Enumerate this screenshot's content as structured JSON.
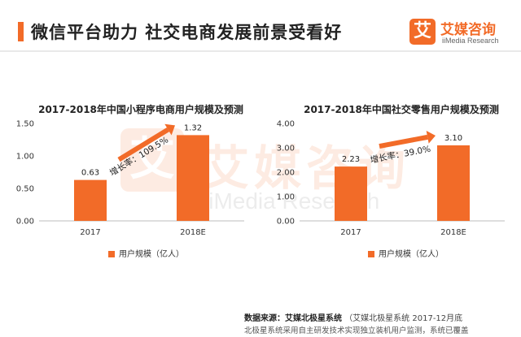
{
  "page": {
    "title": "微信平台助力 社交电商发展前景受看好",
    "accent_color": "#f26b28"
  },
  "brand": {
    "name": "艾媒咨询",
    "sub": "iiMedia Research",
    "mark": "艾"
  },
  "watermark": {
    "name": "艾媒咨询",
    "sub": "iiMedia Research",
    "mark": "艾"
  },
  "chart_data": [
    {
      "type": "bar",
      "title": "2017-2018年中国小程序电商用户规模及预测",
      "categories": [
        "2017",
        "2018E"
      ],
      "series": [
        {
          "name": "用户规模（亿人）",
          "values": [
            0.63,
            1.32
          ]
        }
      ],
      "data_labels": [
        "0.63",
        "1.32"
      ],
      "y_ticks": [
        "0.00",
        "0.50",
        "1.00",
        "1.50"
      ],
      "ylim": [
        0,
        1.5
      ],
      "annotation": "增长率：109.5%",
      "legend_position": "bottom",
      "color": "#f26b28"
    },
    {
      "type": "bar",
      "title": "2017-2018年中国社交零售用户规模及预测",
      "categories": [
        "2017",
        "2018E"
      ],
      "series": [
        {
          "name": "用户规模（亿人）",
          "values": [
            2.23,
            3.1
          ]
        }
      ],
      "data_labels": [
        "2.23",
        "3.10"
      ],
      "y_ticks": [
        "0.00",
        "1.00",
        "2.00",
        "3.00",
        "4.00"
      ],
      "ylim": [
        0,
        4
      ],
      "annotation": "增长率：39.0%",
      "legend_position": "bottom",
      "color": "#f26b28"
    }
  ],
  "source": {
    "label": "数据来源：艾媒北极星系统",
    "detail": "（艾媒北极星系统",
    "note": "北极星系统采用自主研发技术实现独立装机用户监测，系统已覆盖",
    "extra": "2017-12月底"
  }
}
